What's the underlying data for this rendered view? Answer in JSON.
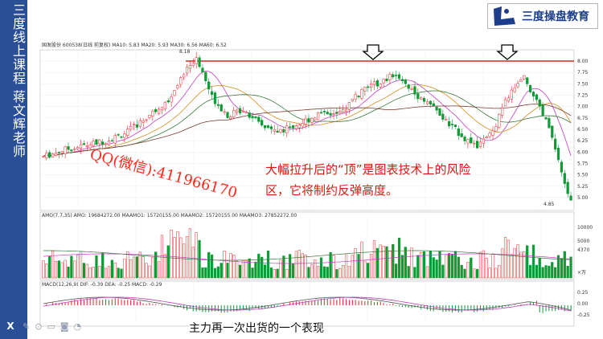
{
  "sidebar": {
    "title": "三度线上课程  蒋文辉老师"
  },
  "logo": {
    "text": "三度操盘教育"
  },
  "chart": {
    "header": "国发股份 600538(日线 前复权) MA10: 5.83  MA20: 5.93  MA30: 6.56  MA60: 6.52",
    "price_ticks": [
      "8.00",
      "7.75",
      "7.50",
      "7.25",
      "7.00",
      "6.75",
      "6.50",
      "6.25",
      "6.00",
      "5.75",
      "5.50",
      "5.25",
      "5.00"
    ],
    "high_label": "8.18",
    "low_label": "4.85",
    "volume_header": "AMO(7,7,35)  AMO: 19684272.00  MAAMO1: 15720155.00  MAAMO2: 15720155.00  MAAMO3: 27852272.00",
    "volume_ticks": [
      "10000",
      "5000",
      "4370",
      "×万"
    ],
    "macd_header": "MACD(12,26,9)  DIF: -0.39  DEA: -0.25  MACD: -0.29",
    "macd_ticks": [
      "0.25",
      "0.00",
      "-0.25"
    ],
    "colors": {
      "up": "#e8262a",
      "down": "#0f9a34",
      "resistance": "#d6261f"
    }
  },
  "annotations": {
    "qq": "QQ(微信):411966170",
    "note": "大幅拉升后的“顶”是图表技术上的风险区，它将制约反弹高度。"
  },
  "caption": "主力再一次出货的一个表现",
  "player": {
    "close_label": "X"
  }
}
